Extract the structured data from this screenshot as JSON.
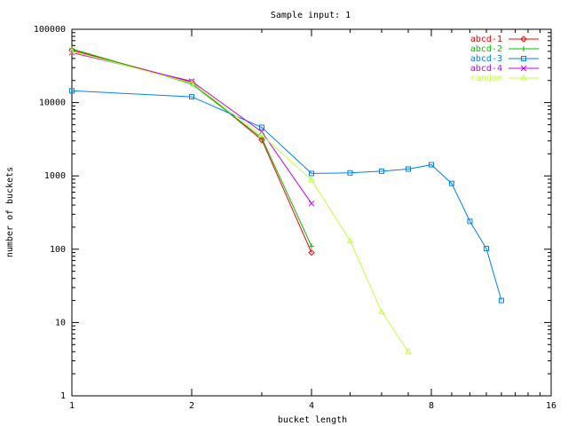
{
  "chart_data": {
    "type": "line",
    "title": "Sample input: 1",
    "xlabel": "bucket length",
    "ylabel": "number of buckets",
    "x_scale": "log2",
    "y_scale": "log10",
    "xlim": [
      1,
      16
    ],
    "ylim": [
      1,
      100000
    ],
    "x_ticks": [
      {
        "value": 1,
        "label": "1"
      },
      {
        "value": 2,
        "label": "2"
      },
      {
        "value": 4,
        "label": "4"
      },
      {
        "value": 8,
        "label": "8"
      },
      {
        "value": 16,
        "label": "16"
      }
    ],
    "y_ticks": [
      {
        "value": 1,
        "label": "1"
      },
      {
        "value": 10,
        "label": "10"
      },
      {
        "value": 100,
        "label": "100"
      },
      {
        "value": 1000,
        "label": "1000"
      },
      {
        "value": 10000,
        "label": "10000"
      },
      {
        "value": 100000,
        "label": "100000"
      }
    ],
    "grid": false,
    "legend_position": "top-right",
    "series": [
      {
        "name": "abcd-1",
        "color": "#ff0000",
        "marker": "diamond",
        "x": [
          1,
          2,
          3,
          4
        ],
        "y": [
          52000,
          19000,
          3100,
          90
        ]
      },
      {
        "name": "abcd-2",
        "color": "#00c000",
        "marker": "plus",
        "x": [
          1,
          2,
          3,
          4
        ],
        "y": [
          54000,
          18000,
          3300,
          110
        ]
      },
      {
        "name": "abcd-3",
        "color": "#0080ff",
        "marker": "square",
        "x": [
          1,
          2,
          3,
          4,
          5,
          6,
          7,
          8,
          9,
          10,
          11,
          12
        ],
        "y": [
          14500,
          12000,
          4600,
          1080,
          1100,
          1160,
          1240,
          1420,
          790,
          240,
          102,
          20
        ]
      },
      {
        "name": "abcd-4",
        "color": "#c000ff",
        "marker": "cross",
        "x": [
          1,
          2,
          3,
          4
        ],
        "y": [
          48000,
          19500,
          4000,
          420
        ]
      },
      {
        "name": "random",
        "color": "#c0ff40",
        "marker": "triangle",
        "x": [
          1,
          2,
          3,
          4,
          5,
          6,
          7
        ],
        "y": [
          50000,
          18500,
          3600,
          880,
          130,
          14,
          4
        ]
      }
    ]
  }
}
